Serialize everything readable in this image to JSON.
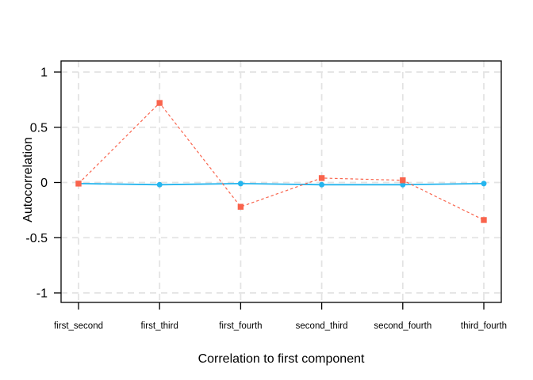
{
  "chart_data": {
    "type": "line",
    "title": "",
    "xlabel": "Correlation to first component",
    "ylabel": "Autocorrelation",
    "categories": [
      "first_second",
      "first_third",
      "first_fourth",
      "second_third",
      "second_fourth",
      "third_fourth"
    ],
    "y_ticks": [
      1,
      0.5,
      0,
      -0.5,
      -1
    ],
    "y_tick_labels": [
      "1",
      "0.5",
      "0",
      "-0.5",
      "-1"
    ],
    "ylim": [
      -1.09,
      1.1
    ],
    "grid": true,
    "grid_style": "dashed",
    "legend_position": "none",
    "series": [
      {
        "name": "cyan_solid_circles",
        "marker": "circle",
        "line_style": "solid",
        "color": "#25B5EE",
        "values": [
          -0.01,
          -0.02,
          -0.01,
          -0.02,
          -0.02,
          -0.01
        ]
      },
      {
        "name": "red_dashed_squares",
        "marker": "square",
        "line_style": "dashed",
        "color": "#F9644D",
        "values": [
          -0.01,
          0.72,
          -0.22,
          0.04,
          0.02,
          -0.34
        ]
      }
    ],
    "colors": {
      "grid": "#E3E3E3",
      "axis": "#000000",
      "text": "#000000",
      "background": "#FFFFFF"
    }
  }
}
